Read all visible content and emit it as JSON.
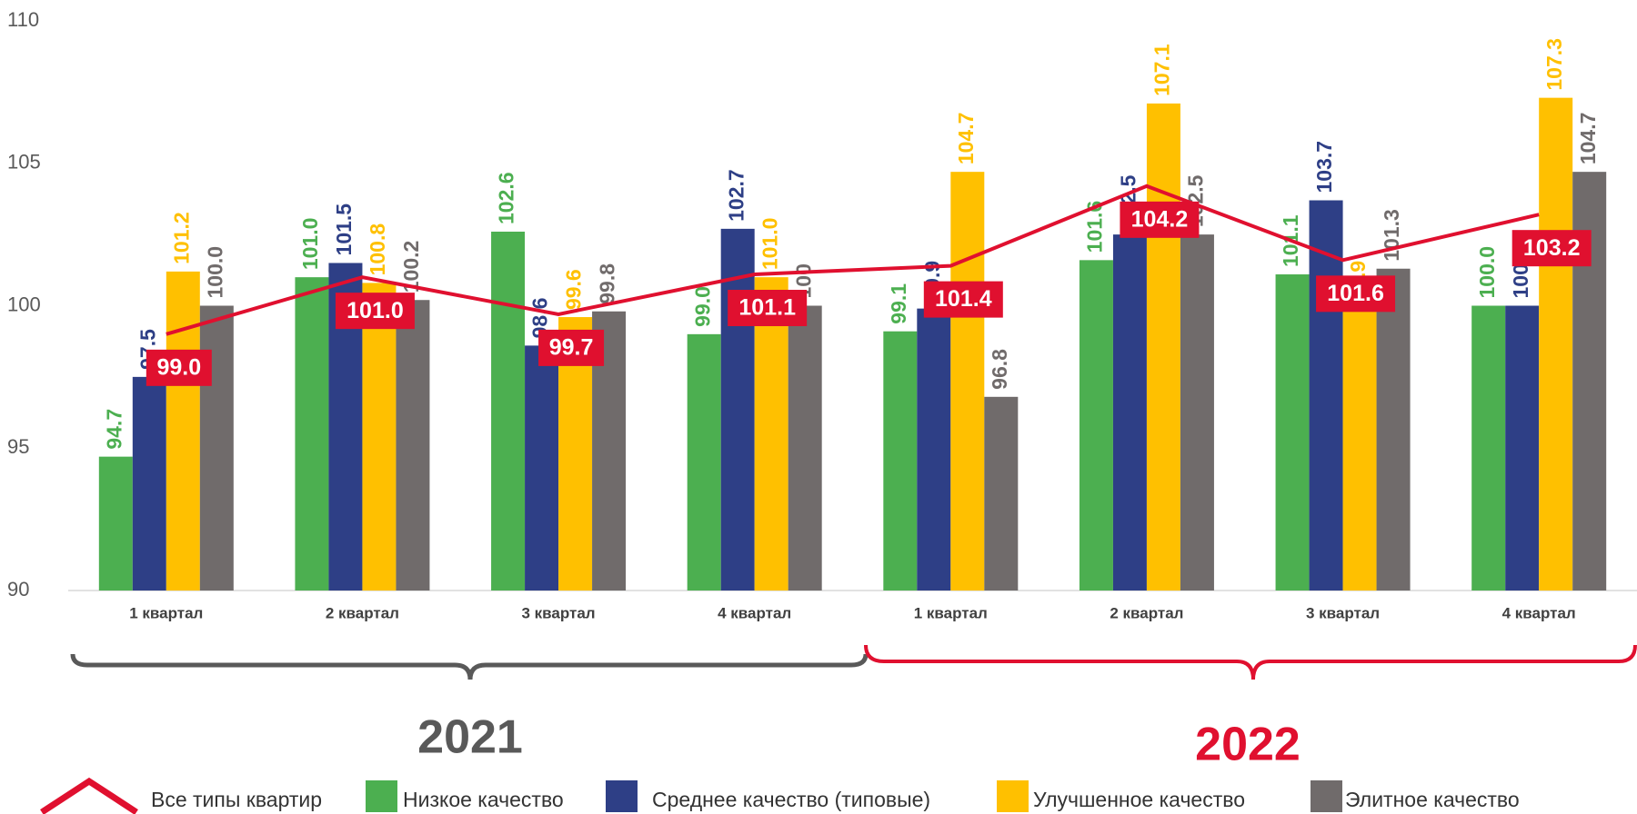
{
  "chart_data": {
    "type": "bar",
    "categories": [
      "1 квартал",
      "2 квартал",
      "3 квартал",
      "4 квартал",
      "1 квартал",
      "2 квартал",
      "3 квартал",
      "4 квартал"
    ],
    "year_groups": [
      "2021",
      "2022"
    ],
    "ylim": [
      90,
      110
    ],
    "yticks": [
      90,
      95,
      100,
      105,
      110
    ],
    "grid": false,
    "series": [
      {
        "name": "Все типы квартир",
        "type": "line",
        "color": "#e0102f",
        "values": [
          99.0,
          101.0,
          99.7,
          101.1,
          101.4,
          104.2,
          101.6,
          103.2
        ],
        "value_labels": [
          "99.0",
          "101.0",
          "99.7",
          "101.1",
          "101.4",
          "104.2",
          "101.6",
          "103.2"
        ]
      },
      {
        "name": "Низкое качество",
        "type": "bar",
        "color": "#4caf50",
        "values": [
          94.7,
          101.0,
          102.6,
          99.0,
          99.1,
          101.6,
          101.1,
          100.0
        ],
        "value_labels": [
          "94.7",
          "101.0",
          "102.6",
          "99.0",
          "99.1",
          "101.6",
          "101.1",
          "100.0"
        ]
      },
      {
        "name": "Среднее качество (типовые)",
        "type": "bar",
        "color": "#2e3f86",
        "values": [
          97.5,
          101.5,
          98.6,
          102.7,
          99.9,
          102.5,
          103.7,
          100.0
        ],
        "value_labels": [
          "97.5",
          "101.5",
          "98.6",
          "102.7",
          "99.9",
          "102.5",
          "103.7",
          "100.0"
        ]
      },
      {
        "name": "Улучшенное качество",
        "type": "bar",
        "color": "#ffc000",
        "values": [
          101.2,
          100.8,
          99.6,
          101.0,
          104.7,
          107.1,
          99.9,
          107.3
        ],
        "value_labels": [
          "101.2",
          "100.8",
          "99.6",
          "101.0",
          "104.7",
          "107.1",
          "99.9",
          "107.3"
        ]
      },
      {
        "name": "Элитное качество",
        "type": "bar",
        "color": "#706b6b",
        "values": [
          100.0,
          100.2,
          99.8,
          100,
          96.8,
          102.5,
          101.3,
          104.7
        ],
        "value_labels": [
          "100.0",
          "100.2",
          "99.8",
          "100",
          "96.8",
          "102.5",
          "101.3",
          "104.7"
        ]
      }
    ]
  }
}
